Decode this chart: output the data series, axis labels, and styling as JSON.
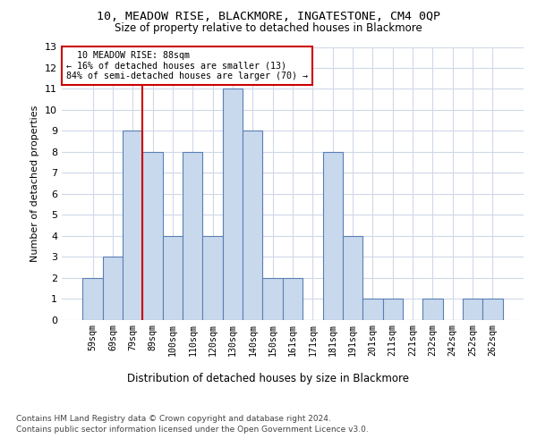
{
  "title": "10, MEADOW RISE, BLACKMORE, INGATESTONE, CM4 0QP",
  "subtitle": "Size of property relative to detached houses in Blackmore",
  "xlabel_bottom": "Distribution of detached houses by size in Blackmore",
  "ylabel": "Number of detached properties",
  "bar_labels": [
    "59sqm",
    "69sqm",
    "79sqm",
    "89sqm",
    "100sqm",
    "110sqm",
    "120sqm",
    "130sqm",
    "140sqm",
    "150sqm",
    "161sqm",
    "171sqm",
    "181sqm",
    "191sqm",
    "201sqm",
    "211sqm",
    "221sqm",
    "232sqm",
    "242sqm",
    "252sqm",
    "262sqm"
  ],
  "bar_values": [
    2,
    3,
    9,
    8,
    4,
    8,
    4,
    11,
    9,
    2,
    2,
    0,
    8,
    4,
    1,
    1,
    0,
    1,
    0,
    1,
    1
  ],
  "bar_color": "#c9d9ed",
  "bar_edge_color": "#5a7fb5",
  "property_size": 88,
  "property_label": "10 MEADOW RISE: 88sqm",
  "pct_smaller": 16,
  "n_smaller": 13,
  "pct_larger_semi": 84,
  "n_larger_semi": 70,
  "vline_x_index": 3,
  "vline_color": "#cc0000",
  "annotation_box_color": "#cc0000",
  "grid_color": "#d0d8e8",
  "ylim": [
    0,
    13
  ],
  "yticks": [
    0,
    1,
    2,
    3,
    4,
    5,
    6,
    7,
    8,
    9,
    10,
    11,
    12,
    13
  ],
  "footnote1": "Contains HM Land Registry data © Crown copyright and database right 2024.",
  "footnote2": "Contains public sector information licensed under the Open Government Licence v3.0."
}
